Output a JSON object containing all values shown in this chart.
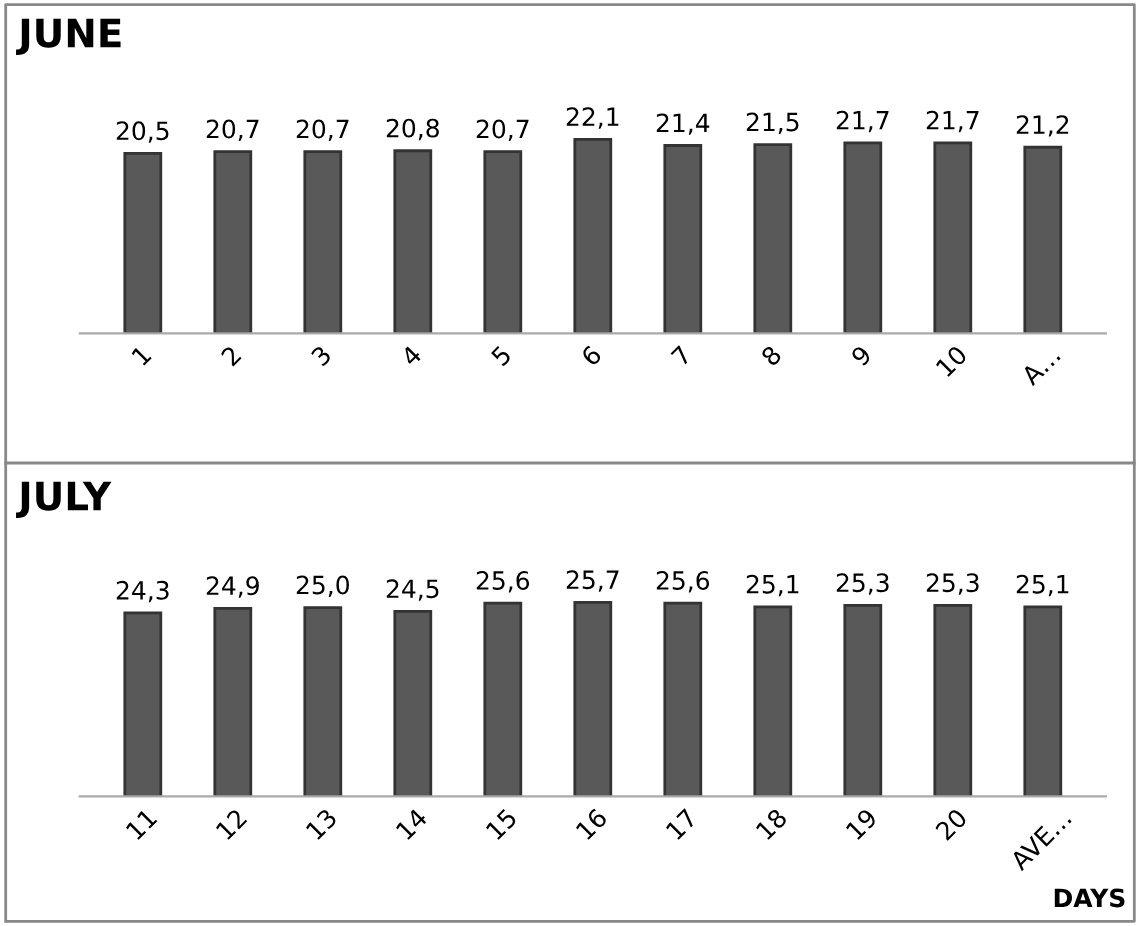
{
  "chart_data": [
    {
      "type": "bar",
      "title": "JUNE",
      "categories": [
        "1",
        "2",
        "3",
        "4",
        "5",
        "6",
        "7",
        "8",
        "9",
        "10",
        "A…"
      ],
      "values": [
        20.5,
        20.7,
        20.7,
        20.8,
        20.7,
        22.1,
        21.4,
        21.5,
        21.7,
        21.7,
        21.2
      ],
      "value_labels": [
        "20,5",
        "20,7",
        "20,7",
        "20,8",
        "20,7",
        "22,1",
        "21,4",
        "21,5",
        "21,7",
        "21,7",
        "21,2"
      ],
      "color": "#595959",
      "tick_labels": "x",
      "grid": false,
      "legend": false
    },
    {
      "type": "bar",
      "title": "JULY",
      "xlabel": "DAYS",
      "categories": [
        "11",
        "12",
        "13",
        "14",
        "15",
        "16",
        "17",
        "18",
        "19",
        "20",
        "AVE…"
      ],
      "values": [
        24.3,
        24.9,
        25.0,
        24.5,
        25.6,
        25.7,
        25.6,
        25.1,
        25.3,
        25.3,
        25.1
      ],
      "value_labels": [
        "24,3",
        "24,9",
        "25,0",
        "24,5",
        "25,6",
        "25,7",
        "25,6",
        "25,1",
        "25,3",
        "25,3",
        "25,1"
      ],
      "color": "#595959",
      "tick_labels": "x",
      "grid": false,
      "legend": false
    }
  ]
}
